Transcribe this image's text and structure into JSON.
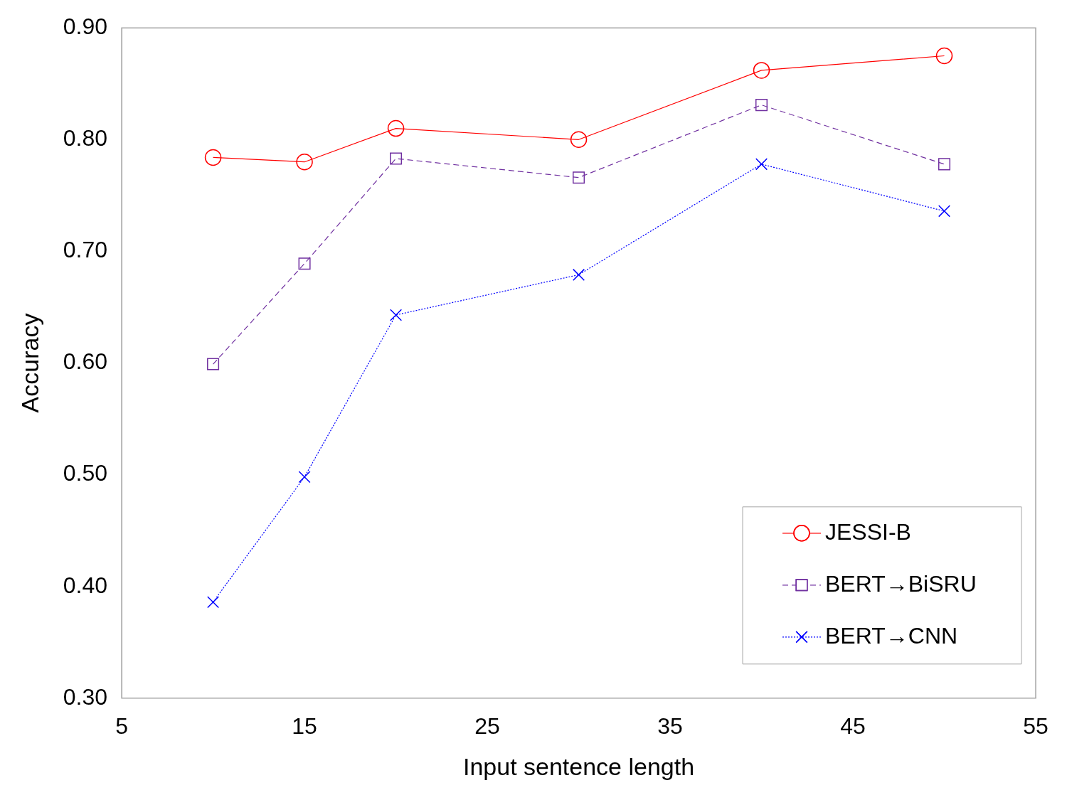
{
  "chart_data": {
    "type": "line",
    "xlabel": "Input sentence length",
    "ylabel": "Accuracy",
    "x": [
      10,
      15,
      20,
      30,
      40,
      50
    ],
    "xlim": [
      5,
      55
    ],
    "xticks": [
      5,
      15,
      25,
      35,
      45,
      55
    ],
    "ylim": [
      0.3,
      0.9
    ],
    "yticks": [
      {
        "value": 0.3,
        "label": "0.30"
      },
      {
        "value": 0.4,
        "label": "0.40"
      },
      {
        "value": 0.5,
        "label": "0.50"
      },
      {
        "value": 0.6,
        "label": "0.60"
      },
      {
        "value": 0.7,
        "label": "0.70"
      },
      {
        "value": 0.8,
        "label": "0.80"
      },
      {
        "value": 0.9,
        "label": "0.90"
      }
    ],
    "grid": false,
    "legend": "bottom right",
    "series": [
      {
        "name": "JESSI-B",
        "color": "#ff0000",
        "marker": "circle",
        "line_style": "solid",
        "values": [
          0.784,
          0.78,
          0.81,
          0.8,
          0.862,
          0.875
        ]
      },
      {
        "name": "BERT→BiSRU",
        "color": "#7030a0",
        "marker": "square",
        "line_style": "dashed",
        "values": [
          0.599,
          0.689,
          0.783,
          0.766,
          0.831,
          0.778
        ]
      },
      {
        "name": "BERT→CNN",
        "color": "#0000ff",
        "marker": "cross",
        "line_style": "dotted",
        "values": [
          0.386,
          0.498,
          0.643,
          0.679,
          0.778,
          0.736
        ]
      }
    ]
  }
}
